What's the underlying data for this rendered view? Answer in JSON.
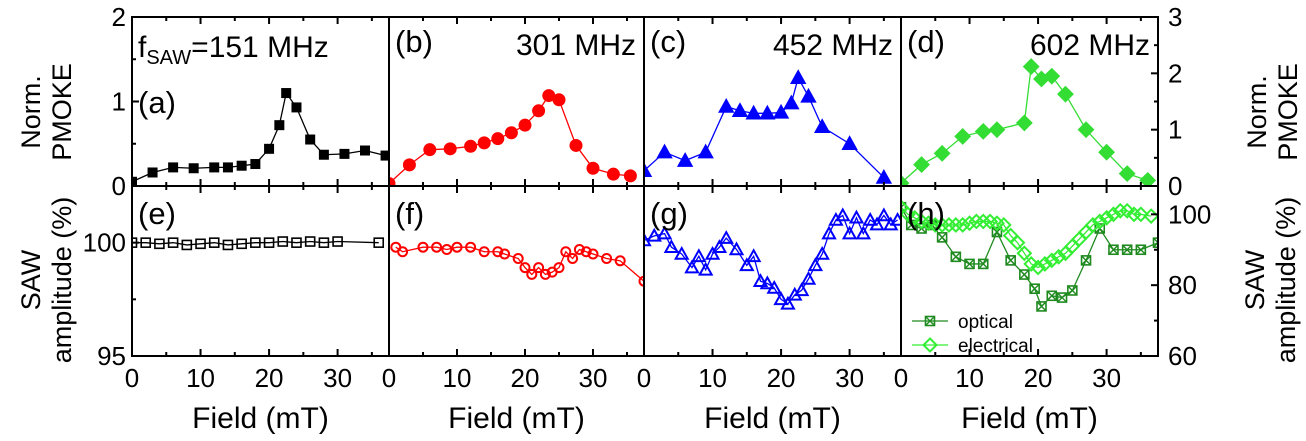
{
  "y_labels": {
    "top_left": [
      "Norm.",
      "PMOKE"
    ],
    "bottom_left": [
      "SAW",
      "amplitude (%)"
    ],
    "top_right": [
      "Norm.",
      "PMOKE"
    ],
    "bottom_right": [
      "SAW",
      "amplitude (%)"
    ]
  },
  "chart_data": [
    {
      "type": "line",
      "panel": "a",
      "title": "=151 MHz",
      "title_prefix": "f",
      "title_sub": "SAW",
      "color": "#000000",
      "marker": "square",
      "filled": true,
      "xlabel": "",
      "ylabel": "Norm. PMOKE",
      "xlim": [
        0,
        37.5
      ],
      "ylim": [
        0,
        2
      ],
      "x_ticks": [
        "0",
        "10",
        "20",
        "30"
      ],
      "y_ticks": [
        "0",
        "1",
        "2"
      ],
      "x": [
        0,
        3,
        6,
        9,
        12,
        14,
        16,
        18,
        20,
        21.5,
        22.5,
        24,
        26,
        28,
        31,
        34,
        37
      ],
      "y": [
        0.05,
        0.16,
        0.22,
        0.21,
        0.22,
        0.22,
        0.24,
        0.26,
        0.44,
        0.72,
        1.1,
        0.93,
        0.55,
        0.37,
        0.38,
        0.42,
        0.36
      ]
    },
    {
      "type": "line",
      "panel": "b",
      "title": "301 MHz",
      "color": "#ff0000",
      "marker": "circle",
      "filled": true,
      "xlabel": "",
      "xlim": [
        0,
        37.5
      ],
      "ylim": [
        0,
        2
      ],
      "x": [
        0,
        3,
        6,
        9,
        12,
        14,
        16,
        18,
        20,
        22,
        23.5,
        25,
        27.5,
        30,
        33,
        35.5
      ],
      "y": [
        0.03,
        0.25,
        0.43,
        0.44,
        0.47,
        0.51,
        0.56,
        0.63,
        0.72,
        0.89,
        1.07,
        1.02,
        0.48,
        0.21,
        0.14,
        0.12
      ]
    },
    {
      "type": "line",
      "panel": "c",
      "title": "452 MHz",
      "color": "#0000ff",
      "marker": "triangle-up",
      "filled": true,
      "xlabel": "",
      "xlim": [
        0,
        37.5
      ],
      "ylim": [
        0,
        2
      ],
      "x": [
        0,
        3,
        6,
        9,
        12,
        14,
        16,
        18,
        20,
        21.5,
        22.5,
        24,
        26,
        30,
        35
      ],
      "y": [
        0.18,
        0.4,
        0.3,
        0.4,
        0.94,
        0.89,
        0.86,
        0.86,
        0.87,
        0.98,
        1.28,
        1.06,
        0.7,
        0.5,
        0.1
      ]
    },
    {
      "type": "line",
      "panel": "d",
      "title": "602 MHz",
      "color": "#33dd33",
      "marker": "diamond",
      "filled": true,
      "xlabel": "",
      "xlim": [
        0,
        37.5
      ],
      "ylim": [
        0,
        3
      ],
      "y_ticks": [
        "0",
        "1",
        "2",
        "3"
      ],
      "x": [
        0,
        3,
        6,
        9,
        12,
        14,
        18,
        19,
        20.5,
        22,
        24,
        27,
        30,
        33,
        36
      ],
      "y": [
        0.05,
        0.38,
        0.58,
        0.88,
        0.97,
        1.0,
        1.12,
        2.12,
        1.9,
        1.95,
        1.63,
        1.0,
        0.6,
        0.22,
        0.1
      ]
    },
    {
      "type": "line",
      "panel": "e",
      "color": "#000000",
      "marker": "square",
      "filled": false,
      "xlabel": "Field (mT)",
      "ylabel": "SAW amplitude (%)",
      "xlim": [
        0,
        37.5
      ],
      "ylim": [
        95,
        102.5
      ],
      "y_ticks": [
        "95",
        "100"
      ],
      "x": [
        0,
        2,
        4,
        6,
        8,
        10,
        12,
        14,
        16,
        18,
        20,
        22,
        24,
        26,
        28,
        30,
        36
      ],
      "y": [
        100.0,
        100.0,
        99.95,
        100.0,
        99.9,
        99.95,
        100.0,
        99.9,
        99.95,
        100.0,
        100.0,
        100.05,
        100.0,
        100.05,
        100.0,
        100.05,
        100.0
      ]
    },
    {
      "type": "line",
      "panel": "f",
      "color": "#ff0000",
      "marker": "circle",
      "filled": false,
      "xlabel": "Field (mT)",
      "xlim": [
        0,
        37.5
      ],
      "ylim": [
        95,
        102.5
      ],
      "x": [
        1,
        2,
        5,
        7,
        8.5,
        10,
        12,
        14,
        16,
        17,
        19,
        20,
        21,
        22,
        23,
        24,
        25,
        26,
        27,
        28,
        29,
        30,
        32,
        34,
        37.5
      ],
      "y": [
        99.8,
        99.6,
        99.8,
        99.8,
        99.7,
        99.8,
        99.8,
        99.6,
        99.6,
        99.5,
        99.3,
        98.9,
        98.6,
        98.9,
        98.6,
        98.7,
        98.9,
        99.6,
        99.3,
        99.7,
        99.6,
        99.5,
        99.3,
        99.2,
        98.3
      ]
    },
    {
      "type": "line",
      "panel": "g",
      "color": "#0000ff",
      "marker": "triangle-up",
      "filled": false,
      "xlabel": "Field (mT)",
      "xlim": [
        0,
        37.5
      ],
      "ylim": [
        95,
        102.5
      ],
      "x": [
        0,
        1.5,
        3,
        4,
        5.5,
        7,
        8,
        9,
        10,
        11,
        12,
        13.5,
        15,
        16,
        17,
        18,
        19,
        20,
        21,
        22,
        23,
        24,
        25,
        26,
        27,
        28,
        29,
        30,
        31,
        32,
        33,
        34,
        35,
        36,
        37
      ],
      "y": [
        100.1,
        100.3,
        100.4,
        99.8,
        99.5,
        98.9,
        99.4,
        98.8,
        99.5,
        99.8,
        100.2,
        99.7,
        99.0,
        99.4,
        98.3,
        98.2,
        98.0,
        97.5,
        97.3,
        97.7,
        97.9,
        98.4,
        99.0,
        99.5,
        100.4,
        101.0,
        101.2,
        100.4,
        101.1,
        100.4,
        101.0,
        100.8,
        101.2,
        100.8,
        101.0
      ]
    },
    {
      "type": "line",
      "panel": "h",
      "xlabel": "Field (mT)",
      "ylabel": "SAW amplitude (%)",
      "xlim": [
        0,
        37.5
      ],
      "ylim": [
        60,
        108
      ],
      "y_ticks": [
        "60",
        "80",
        "100"
      ],
      "legend": "bottom-left",
      "series": [
        {
          "name": "optical",
          "color": "#1f8a1f",
          "marker": "boxed-x",
          "x": [
            0,
            1.5,
            3,
            4.5,
            6,
            8,
            10,
            12,
            14,
            16,
            18,
            19.5,
            20.5,
            22,
            23.5,
            25,
            27,
            29,
            31,
            33,
            35,
            37.5
          ],
          "y": [
            102,
            97,
            96,
            97,
            93.5,
            88,
            86,
            86,
            95,
            87,
            83,
            79,
            74,
            77,
            76.5,
            78.5,
            87,
            96,
            90,
            90,
            90,
            92
          ]
        },
        {
          "name": "electrical",
          "color": "#33ee33",
          "marker": "diamond",
          "x": [
            0,
            1,
            2,
            3,
            4,
            5,
            6,
            7,
            8,
            9,
            10,
            11,
            12,
            13,
            14,
            15,
            16,
            17,
            18,
            19,
            20,
            21,
            22,
            23,
            24,
            25,
            26,
            27,
            28,
            29,
            30,
            31,
            32,
            33,
            34,
            35,
            36.5
          ],
          "y": [
            102,
            100,
            99,
            98,
            97.5,
            97,
            97,
            97,
            97,
            97,
            97.5,
            98,
            98,
            98,
            97.5,
            97,
            94,
            92,
            89,
            86,
            85,
            86,
            87,
            88,
            89,
            91,
            93,
            95,
            97,
            98,
            99,
            100,
            101,
            101,
            100,
            100,
            99.5
          ]
        }
      ]
    }
  ]
}
